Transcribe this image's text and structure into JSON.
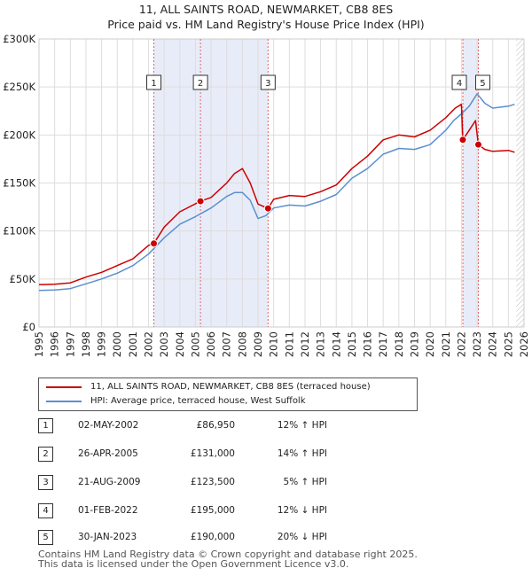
{
  "title_line1": "11, ALL SAINTS ROAD, NEWMARKET, CB8 8ES",
  "title_line2": "Price paid vs. HM Land Registry's House Price Index (HPI)",
  "chart_data": {
    "type": "line",
    "x_range": [
      1995,
      2026
    ],
    "ylim": [
      0,
      300000
    ],
    "y_ticks": [
      {
        "value": 0,
        "label": "£0"
      },
      {
        "value": 50000,
        "label": "£50K"
      },
      {
        "value": 100000,
        "label": "£100K"
      },
      {
        "value": 150000,
        "label": "£150K"
      },
      {
        "value": 200000,
        "label": "£200K"
      },
      {
        "value": 250000,
        "label": "£250K"
      },
      {
        "value": 300000,
        "label": "£300K"
      }
    ],
    "x_ticks": [
      "1995",
      "1996",
      "1997",
      "1998",
      "1999",
      "2000",
      "2001",
      "2002",
      "2003",
      "2004",
      "2005",
      "2006",
      "2007",
      "2008",
      "2009",
      "2010",
      "2011",
      "2012",
      "2013",
      "2014",
      "2015",
      "2016",
      "2017",
      "2018",
      "2019",
      "2020",
      "2021",
      "2022",
      "2023",
      "2024",
      "2025",
      "2026"
    ],
    "colors": {
      "property": "#cc0000",
      "hpi": "#5b8fd0",
      "shade": "#e8ecf8",
      "grid": "#dddddd",
      "vline": "#dd6666"
    },
    "shaded_ranges": [
      [
        2002.33,
        2009.64
      ],
      [
        2022.09,
        2023.08
      ]
    ],
    "future_hatch_from": 2025.5,
    "series": [
      {
        "name": "11, ALL SAINTS ROAD, NEWMARKET, CB8 8ES (terraced house)",
        "points": [
          [
            1995,
            44000
          ],
          [
            1996,
            44500
          ],
          [
            1997,
            46000
          ],
          [
            1998,
            52000
          ],
          [
            1999,
            57000
          ],
          [
            2000,
            64000
          ],
          [
            2001,
            71000
          ],
          [
            2002,
            85000
          ],
          [
            2002.34,
            86950
          ],
          [
            2003,
            104000
          ],
          [
            2004,
            120000
          ],
          [
            2005.32,
            131000
          ],
          [
            2006,
            135000
          ],
          [
            2007,
            150000
          ],
          [
            2007.5,
            160000
          ],
          [
            2008,
            165000
          ],
          [
            2008.5,
            150000
          ],
          [
            2009,
            128000
          ],
          [
            2009.64,
            123500
          ],
          [
            2010,
            133000
          ],
          [
            2011,
            137000
          ],
          [
            2012,
            136000
          ],
          [
            2013,
            141000
          ],
          [
            2014,
            148000
          ],
          [
            2015,
            165000
          ],
          [
            2016,
            178000
          ],
          [
            2017,
            195000
          ],
          [
            2018,
            200000
          ],
          [
            2019,
            198000
          ],
          [
            2020,
            205000
          ],
          [
            2021,
            218000
          ],
          [
            2021.6,
            228000
          ],
          [
            2022.0,
            232000
          ],
          [
            2022.09,
            195000
          ],
          [
            2022.5,
            205000
          ],
          [
            2022.9,
            215000
          ],
          [
            2023.08,
            190000
          ],
          [
            2023.5,
            185000
          ],
          [
            2024,
            183000
          ],
          [
            2025,
            184000
          ],
          [
            2025.4,
            182000
          ]
        ]
      },
      {
        "name": "HPI: Average price, terraced house, West Suffolk",
        "points": [
          [
            1995,
            38000
          ],
          [
            1996,
            38500
          ],
          [
            1997,
            40000
          ],
          [
            1998,
            45000
          ],
          [
            1999,
            50000
          ],
          [
            2000,
            56000
          ],
          [
            2001,
            64000
          ],
          [
            2002,
            76000
          ],
          [
            2003,
            93000
          ],
          [
            2004,
            107000
          ],
          [
            2005,
            115000
          ],
          [
            2006,
            124000
          ],
          [
            2007,
            136000
          ],
          [
            2007.5,
            140000
          ],
          [
            2008,
            140000
          ],
          [
            2008.5,
            132000
          ],
          [
            2009,
            113000
          ],
          [
            2009.5,
            116000
          ],
          [
            2010,
            124000
          ],
          [
            2011,
            127000
          ],
          [
            2012,
            126000
          ],
          [
            2013,
            131000
          ],
          [
            2014,
            138000
          ],
          [
            2015,
            155000
          ],
          [
            2016,
            165000
          ],
          [
            2017,
            180000
          ],
          [
            2018,
            186000
          ],
          [
            2019,
            185000
          ],
          [
            2020,
            190000
          ],
          [
            2021,
            205000
          ],
          [
            2021.5,
            215000
          ],
          [
            2022,
            222000
          ],
          [
            2022.5,
            230000
          ],
          [
            2023,
            243000
          ],
          [
            2023.5,
            233000
          ],
          [
            2024,
            228000
          ],
          [
            2025,
            230000
          ],
          [
            2025.4,
            232000
          ]
        ]
      }
    ],
    "sale_markers": [
      {
        "label": "1",
        "x": 2002.34,
        "value": 86950
      },
      {
        "label": "2",
        "x": 2005.32,
        "value": 131000
      },
      {
        "label": "3",
        "x": 2009.64,
        "value": 123500
      },
      {
        "label": "4",
        "x": 2022.09,
        "value": 195000
      },
      {
        "label": "5",
        "x": 2023.08,
        "value": 190000
      }
    ]
  },
  "legend": {
    "property_label": "11, ALL SAINTS ROAD, NEWMARKET, CB8 8ES (terraced house)",
    "hpi_label": "HPI: Average price, terraced house, West Suffolk"
  },
  "sales": [
    {
      "num": "1",
      "date": "02-MAY-2002",
      "price": "£86,950",
      "hpi": "12% ↑ HPI"
    },
    {
      "num": "2",
      "date": "26-APR-2005",
      "price": "£131,000",
      "hpi": "14% ↑ HPI"
    },
    {
      "num": "3",
      "date": "21-AUG-2009",
      "price": "£123,500",
      "hpi": "5% ↑ HPI"
    },
    {
      "num": "4",
      "date": "01-FEB-2022",
      "price": "£195,000",
      "hpi": "12% ↓ HPI"
    },
    {
      "num": "5",
      "date": "30-JAN-2023",
      "price": "£190,000",
      "hpi": "20% ↓ HPI"
    }
  ],
  "footer_line1": "Contains HM Land Registry data © Crown copyright and database right 2025.",
  "footer_line2": "This data is licensed under the Open Government Licence v3.0."
}
